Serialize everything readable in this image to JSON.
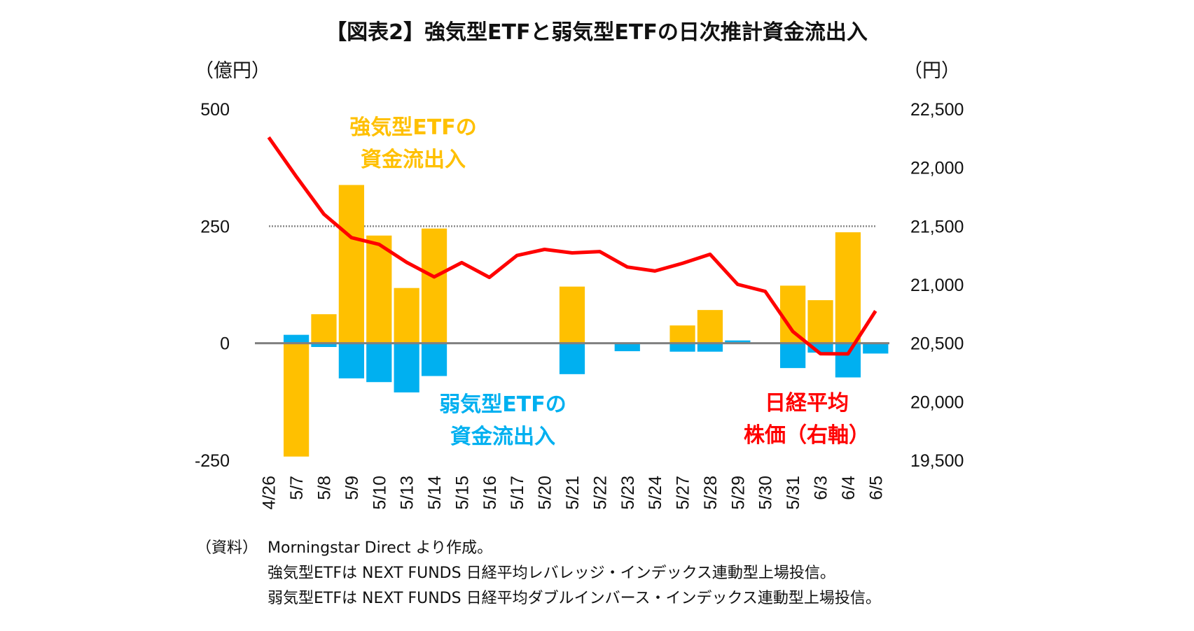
{
  "chart_data": {
    "type": "bar+line",
    "title": "【図表2】強気型ETFと弱気型ETFの日次推計資金流出入",
    "y_left_label": "（億円）",
    "y_right_label": "（円）",
    "y_left_ticks": [
      "500",
      "250",
      "0",
      "-250"
    ],
    "y_left_tick_values": [
      500,
      250,
      0,
      -250
    ],
    "y_left_range": [
      -250,
      500
    ],
    "y_right_ticks": [
      "22,500",
      "22,000",
      "21,500",
      "21,000",
      "20,500",
      "20,000",
      "19,500"
    ],
    "y_right_tick_values": [
      22500,
      22000,
      21500,
      21000,
      20500,
      20000,
      19500
    ],
    "y_right_range": [
      19500,
      22500
    ],
    "reference_line_left": 250,
    "categories": [
      "4/26",
      "5/7",
      "5/8",
      "5/9",
      "5/10",
      "5/13",
      "5/14",
      "5/15",
      "5/16",
      "5/17",
      "5/20",
      "5/21",
      "5/22",
      "5/23",
      "5/24",
      "5/27",
      "5/28",
      "5/29",
      "5/30",
      "5/31",
      "6/3",
      "6/4",
      "6/5"
    ],
    "series": [
      {
        "name": "強気型ETFの資金流出入",
        "type": "bar",
        "axis": "left",
        "color": "#FFC000",
        "values": [
          0,
          -242,
          62,
          338,
          230,
          118,
          245,
          0,
          0,
          0,
          0,
          121,
          0,
          0,
          0,
          38,
          71,
          0,
          0,
          123,
          92,
          237,
          2
        ]
      },
      {
        "name": "弱気型ETFの資金流出入",
        "type": "bar",
        "axis": "left",
        "color": "#00B0F0",
        "values": [
          0,
          18,
          -8,
          -75,
          -83,
          -105,
          -70,
          0,
          0,
          0,
          0,
          -66,
          0,
          -17,
          -2,
          -18,
          -18,
          6,
          0,
          -53,
          -20,
          -73,
          -22
        ]
      },
      {
        "name": "日経平均株価（右軸）",
        "type": "line",
        "axis": "right",
        "color": "#FF0000",
        "values": [
          22259,
          21924,
          21603,
          21402,
          21345,
          21191,
          21067,
          21189,
          21063,
          21250,
          21302,
          21272,
          21283,
          21151,
          21117,
          21183,
          21260,
          21003,
          20943,
          20601,
          20411,
          20409,
          20776
        ]
      }
    ],
    "annotations": {
      "strong": [
        "強気型ETFの",
        "資金流出入"
      ],
      "weak": [
        "弱気型ETFの",
        "資金流出入"
      ],
      "nikkei": [
        "日経平均",
        "株価（右軸）"
      ]
    }
  },
  "notes": [
    "（資料）",
    "Morningstar Direct より作成。",
    "強気型ETFは NEXT FUNDS  日経平均レバレッジ・インデックス連動型上場投信。",
    "弱気型ETFは NEXT FUNDS  日経平均ダブルインバース・インデックス連動型上場投信。"
  ]
}
